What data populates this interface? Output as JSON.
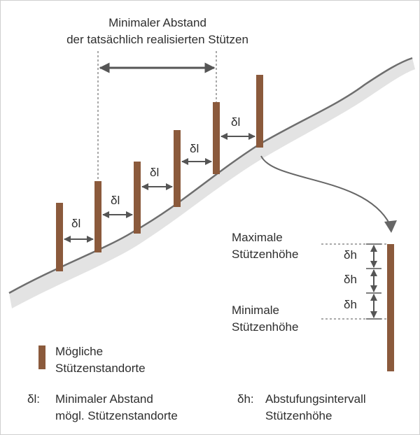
{
  "title": {
    "line1": "Minimaler Abstand",
    "line2": "der tatsächlich realisierten Stützen"
  },
  "delta_l_label": "δl",
  "delta_h_label": "δh",
  "detail": {
    "max_line1": "Maximale",
    "max_line2": "Stützenhöhe",
    "min_line1": "Minimale",
    "min_line2": "Stützenhöhe"
  },
  "legend": {
    "swatch_line1": "Mögliche",
    "swatch_line2": "Stützenstandorte",
    "dl_symbol": "δl:",
    "dl_line1": "Minimaler Abstand",
    "dl_line2": "mögl. Stützenstandorte",
    "dh_symbol": "δh:",
    "dh_line1": "Abstufungsintervall",
    "dh_line2": "Stützenhöhe"
  },
  "colors": {
    "pole": "#8b5a3c",
    "terrain_fill": "#e3e3e3",
    "terrain_edge": "#6e6e6e",
    "arrow": "#555555",
    "text": "#2e2e2e"
  }
}
